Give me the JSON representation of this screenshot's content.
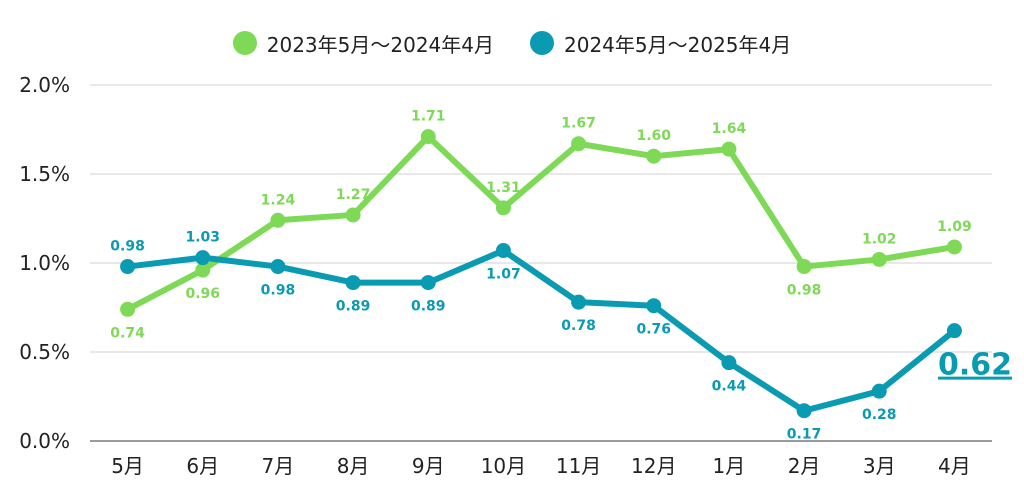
{
  "chart_data": {
    "type": "line",
    "categories": [
      "5月",
      "6月",
      "7月",
      "8月",
      "9月",
      "10月",
      "11月",
      "12月",
      "1月",
      "2月",
      "3月",
      "4月"
    ],
    "ylim": [
      0,
      2.0
    ],
    "yticks": [
      "0.0%",
      "0.5%",
      "1.0%",
      "1.5%",
      "2.0%"
    ],
    "ytick_values": [
      0,
      0.5,
      1.0,
      1.5,
      2.0
    ],
    "grid": true,
    "legend_position": "top-center",
    "series": [
      {
        "name": "2023年5月～2024年4月",
        "color": "#7ed957",
        "values": [
          0.74,
          0.96,
          1.24,
          1.27,
          1.71,
          1.31,
          1.67,
          1.6,
          1.64,
          0.98,
          1.02,
          1.09
        ],
        "labels": [
          "0.74",
          "0.96",
          "1.24",
          "1.27",
          "1.71",
          "1.31",
          "1.67",
          "1.60",
          "1.64",
          "0.98",
          "1.02",
          "1.09"
        ]
      },
      {
        "name": "2024年5月～2025年4月",
        "color": "#0a9bb3",
        "values": [
          0.98,
          1.03,
          0.98,
          0.89,
          0.89,
          1.07,
          0.78,
          0.76,
          0.44,
          0.17,
          0.28,
          0.62
        ],
        "labels": [
          "0.98",
          "1.03",
          "0.98",
          "0.89",
          "0.89",
          "1.07",
          "0.78",
          "0.76",
          "0.44",
          "0.17",
          "0.28",
          "0.62"
        ]
      }
    ],
    "highlight": {
      "series_index": 1,
      "point_index": 11,
      "text": "0.62"
    }
  }
}
